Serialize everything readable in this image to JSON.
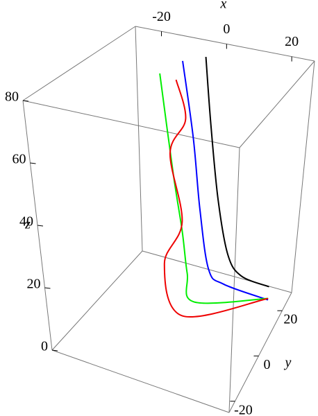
{
  "chart_data": {
    "type": "line3d",
    "xlabel": "x",
    "ylabel": "y",
    "zlabel": "z",
    "xlim": [
      -28,
      27
    ],
    "ylim": [
      -25,
      28
    ],
    "zlim": [
      0,
      80
    ],
    "xticks": [
      -20,
      0,
      20
    ],
    "yticks": [
      -20,
      0,
      20
    ],
    "zticks": [
      0,
      20,
      40,
      60,
      80
    ],
    "series": [
      {
        "color": "#000000",
        "x": [
          -3,
          -1,
          2,
          6,
          11,
          21
        ],
        "y": [
          22,
          22,
          22,
          22,
          22,
          22
        ],
        "z": [
          78,
          55,
          30,
          12,
          6,
          5
        ]
      },
      {
        "color": "#0000ff",
        "x": [
          -10,
          -6.5,
          -4,
          -0.5,
          5,
          21
        ],
        "y": [
          22,
          22,
          22,
          22,
          22,
          22
        ],
        "z": [
          75,
          49,
          25,
          5,
          1.5,
          0.5
        ]
      },
      {
        "color": "#00ee00",
        "x": [
          -17,
          -13,
          -10,
          -6,
          -0.5,
          21
        ],
        "y": [
          22,
          22,
          22,
          18,
          12,
          22
        ],
        "z": [
          69,
          35,
          16,
          5,
          1,
          1
        ]
      },
      {
        "color": "#ee0000",
        "x": [
          -12,
          -9,
          -14,
          -10,
          -14,
          -1,
          21
        ],
        "y": [
          22,
          22,
          22,
          22,
          18,
          5,
          22
        ],
        "z": [
          68,
          55,
          42,
          19,
          6,
          1,
          1
        ]
      }
    ]
  }
}
